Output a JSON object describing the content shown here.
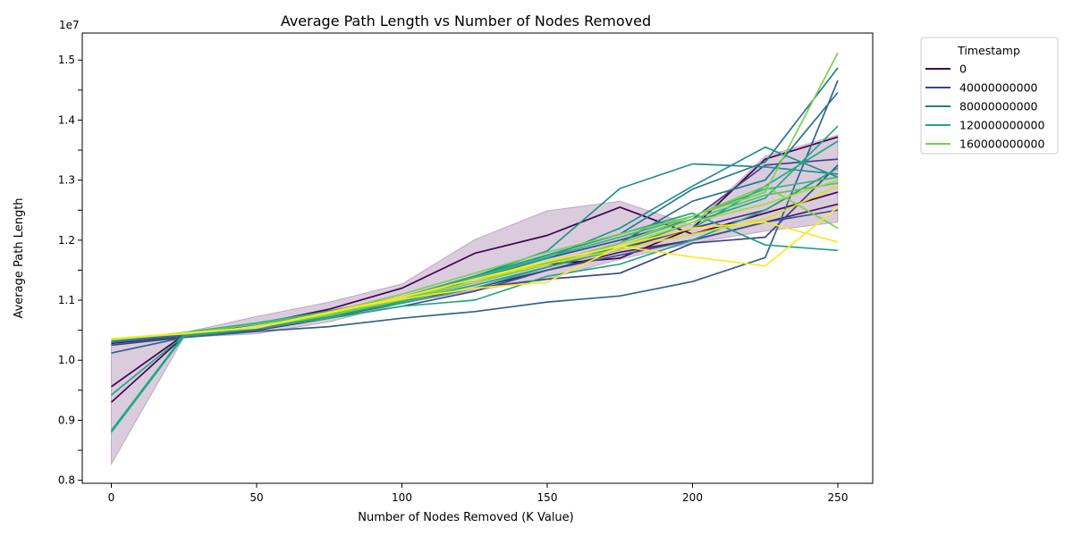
{
  "chart_data": {
    "type": "line",
    "title": "Average Path Length vs Number of Nodes Removed",
    "xlabel": "Number of Nodes Removed (K Value)",
    "ylabel": "Average Path Length",
    "y_offset_label": "1e7",
    "xlim": [
      -10,
      262
    ],
    "ylim": [
      7.95,
      15.45
    ],
    "x_ticks": [
      0,
      50,
      100,
      150,
      200,
      250
    ],
    "x_tick_labels": [
      "0",
      "50",
      "100",
      "150",
      "200",
      "250"
    ],
    "y_ticks": [
      8.0,
      8.5,
      9.0,
      9.5,
      10.0,
      10.5,
      11.0,
      11.5,
      12.0,
      12.5,
      13.0,
      13.5,
      14.0,
      14.5,
      15.0
    ],
    "y_tick_labels": [
      "0.8",
      "0.9",
      "1.0",
      "1.1",
      "1.2",
      "1.3",
      "1.4",
      "1.5"
    ],
    "y_tick_label_values": [
      8.0,
      9.0,
      10.0,
      11.0,
      12.0,
      13.0,
      14.0,
      15.0
    ],
    "grid": false,
    "legend": {
      "title": "Timestamp",
      "placement": "outside-top-right",
      "entries": [
        {
          "label": "0",
          "color": "#440154"
        },
        {
          "label": "40000000000",
          "color": "#414487"
        },
        {
          "label": "80000000000",
          "color": "#2a788e"
        },
        {
          "label": "120000000000",
          "color": "#22a884"
        },
        {
          "label": "160000000000",
          "color": "#7ad151"
        }
      ]
    },
    "x": [
      0,
      25,
      50,
      75,
      100,
      125,
      150,
      175,
      200,
      225,
      250
    ],
    "band": {
      "color": "#440154",
      "opacity": 0.2,
      "lower": [
        8.27,
        10.38,
        10.44,
        10.64,
        10.95,
        11.16,
        11.35,
        11.68,
        11.95,
        12.15,
        12.3
      ],
      "upper": [
        10.3,
        10.46,
        10.73,
        10.97,
        11.27,
        12.01,
        12.49,
        12.65,
        12.25,
        13.4,
        13.75
      ]
    },
    "series": [
      {
        "color": "#440154",
        "values": [
          9.56,
          10.42,
          10.6,
          10.85,
          11.2,
          11.78,
          12.08,
          12.55,
          12.1,
          12.45,
          12.8
        ]
      },
      {
        "color": "#440154",
        "values": [
          9.3,
          10.4,
          10.5,
          10.7,
          11.0,
          11.3,
          11.6,
          11.7,
          12.2,
          13.35,
          13.72
        ]
      },
      {
        "color": "#481a6c",
        "values": [
          10.28,
          10.4,
          10.55,
          10.8,
          11.0,
          11.2,
          11.5,
          11.8,
          12.0,
          12.3,
          12.6
        ]
      },
      {
        "color": "#472f7d",
        "values": [
          10.3,
          10.42,
          10.55,
          10.75,
          11.05,
          11.35,
          11.6,
          11.85,
          12.2,
          12.5,
          13.2
        ]
      },
      {
        "color": "#414487",
        "values": [
          10.25,
          10.38,
          10.5,
          10.72,
          10.95,
          11.2,
          11.35,
          11.45,
          11.95,
          12.05,
          13.25
        ]
      },
      {
        "color": "#414487",
        "values": [
          10.3,
          10.45,
          10.6,
          10.8,
          11.05,
          11.4,
          11.7,
          12.0,
          12.35,
          13.25,
          13.35
        ]
      },
      {
        "color": "#3b528b",
        "values": [
          10.3,
          10.4,
          10.55,
          10.7,
          10.9,
          11.15,
          11.5,
          11.75,
          12.0,
          12.3,
          12.5
        ]
      },
      {
        "color": "#33638d",
        "values": [
          10.12,
          10.38,
          10.48,
          10.56,
          10.7,
          10.81,
          10.97,
          11.07,
          11.31,
          11.71,
          14.66
        ]
      },
      {
        "color": "#2c728e",
        "values": [
          10.3,
          10.42,
          10.55,
          10.75,
          11.0,
          11.3,
          11.6,
          11.95,
          12.65,
          13.0,
          14.46
        ]
      },
      {
        "color": "#2a788e",
        "values": [
          10.3,
          10.44,
          10.6,
          10.8,
          11.05,
          11.4,
          11.75,
          12.1,
          12.85,
          13.3,
          14.87
        ]
      },
      {
        "color": "#21918c",
        "values": [
          10.32,
          10.45,
          10.62,
          10.8,
          11.05,
          11.4,
          11.82,
          12.86,
          13.27,
          13.22,
          13.1
        ]
      },
      {
        "color": "#21918c",
        "values": [
          10.32,
          10.45,
          10.6,
          10.78,
          11.0,
          11.35,
          11.7,
          12.2,
          12.9,
          13.55,
          13.05
        ]
      },
      {
        "color": "#1fa088",
        "values": [
          10.33,
          10.46,
          10.62,
          10.82,
          11.05,
          11.4,
          11.75,
          12.1,
          12.45,
          11.92,
          11.83
        ]
      },
      {
        "color": "#22a884",
        "values": [
          8.83,
          10.42,
          10.55,
          10.75,
          10.95,
          11.2,
          11.55,
          11.85,
          12.3,
          12.7,
          13.9
        ]
      },
      {
        "color": "#22a884",
        "values": [
          8.8,
          10.4,
          10.52,
          10.7,
          10.9,
          11.0,
          11.4,
          11.6,
          12.0,
          12.5,
          13.2
        ]
      },
      {
        "color": "#22a884",
        "values": [
          9.42,
          10.41,
          10.55,
          10.72,
          10.98,
          11.25,
          11.55,
          11.9,
          12.2,
          12.9,
          13.65
        ]
      },
      {
        "color": "#35b779",
        "values": [
          10.34,
          10.46,
          10.62,
          10.8,
          11.05,
          11.38,
          11.72,
          12.05,
          12.4,
          12.85,
          13.05
        ]
      },
      {
        "color": "#54c568",
        "values": [
          10.34,
          10.45,
          10.6,
          10.78,
          11.02,
          11.3,
          11.62,
          11.95,
          12.35,
          12.75,
          12.95
        ]
      },
      {
        "color": "#7ad151",
        "values": [
          10.35,
          10.45,
          10.55,
          10.8,
          11.1,
          11.45,
          11.8,
          12.1,
          12.4,
          12.8,
          15.12
        ]
      },
      {
        "color": "#7ad151",
        "values": [
          10.35,
          10.44,
          10.55,
          10.75,
          11.0,
          11.3,
          11.6,
          11.95,
          12.4,
          12.9,
          12.2
        ]
      },
      {
        "color": "#a5db36",
        "values": [
          10.35,
          10.45,
          10.55,
          10.78,
          11.05,
          11.3,
          11.65,
          11.9,
          12.3,
          12.6,
          13.0
        ]
      },
      {
        "color": "#d2e21b",
        "values": [
          10.36,
          10.44,
          10.55,
          10.78,
          11.05,
          11.35,
          11.6,
          11.85,
          12.1,
          12.35,
          12.9
        ]
      },
      {
        "color": "#fde725",
        "values": [
          10.36,
          10.45,
          10.54,
          10.8,
          11.02,
          11.2,
          11.3,
          11.9,
          11.72,
          11.57,
          12.55
        ]
      },
      {
        "color": "#fde725",
        "values": [
          10.35,
          10.45,
          10.55,
          10.8,
          11.05,
          11.35,
          11.65,
          11.9,
          12.2,
          12.3,
          11.97
        ]
      }
    ]
  }
}
